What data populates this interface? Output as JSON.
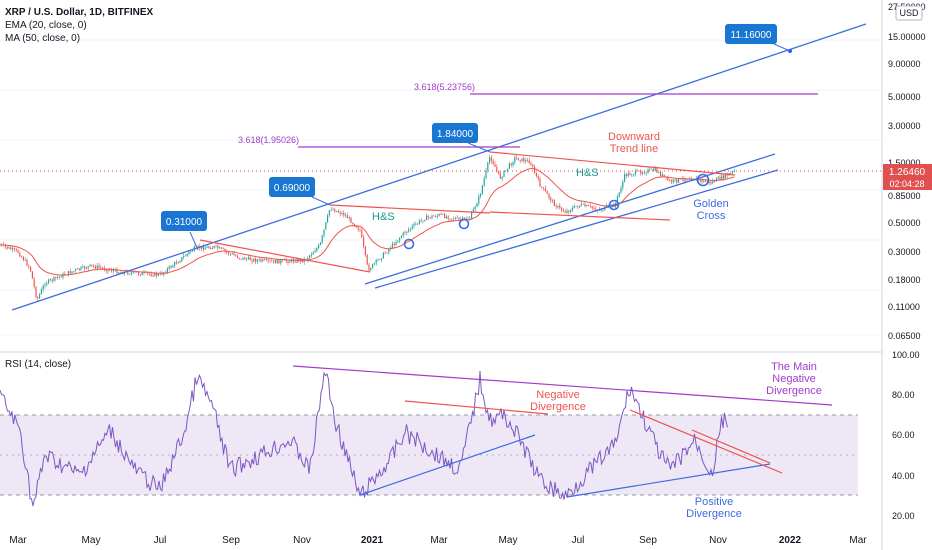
{
  "header": {
    "title": "XRP / U.S. Dollar, 1D, BITFINEX",
    "ema": "EMA (20, close, 0)",
    "ma": "MA (50, close, 0)",
    "currency": "USD",
    "rsi_title": "RSI (14, close)"
  },
  "colors": {
    "channel": "#3b6de0",
    "trend": "#f0544f",
    "fib": "#a23bcd",
    "ema": "#f0544f",
    "rsi": "#7e57c2",
    "rsi_band": "#ede7f6",
    "label_bg": "#1976d2",
    "price_tag": "#e05050",
    "golden": "#3b6de0",
    "hns": "#1e9a8c"
  },
  "chart_data": [
    {
      "type": "line",
      "title": "XRP / U.S. Dollar, 1D, BITFINEX",
      "scale": "log",
      "y_ticks": [
        "27.50000",
        "15.00000",
        "9.00000",
        "5.00000",
        "3.00000",
        "1.50000",
        "0.85000",
        "0.50000",
        "0.30000",
        "0.18000",
        "0.11000",
        "0.06500"
      ],
      "x_ticks": [
        "Mar",
        "May",
        "Jul",
        "Sep",
        "Nov",
        "2021",
        "Mar",
        "May",
        "Jul",
        "Sep",
        "Nov",
        "2022",
        "Mar"
      ],
      "last_price": "1.26460",
      "countdown": "02:04:28",
      "callouts": [
        "0.31000",
        "0.69000",
        "1.84000",
        "11.16000"
      ],
      "fib_levels": [
        {
          "label": "3.618(1.95026)",
          "value": 1.95026
        },
        {
          "label": "3.618(5.23756)",
          "value": 5.23756
        }
      ],
      "annotations": [
        "H&S",
        "H&S",
        "Downward\nTrend line",
        "Golden\nCross"
      ]
    },
    {
      "type": "line",
      "title": "RSI (14, close)",
      "y_ticks": [
        "100.00",
        "80.00",
        "60.00",
        "40.00",
        "20.00"
      ],
      "bands": [
        30,
        50,
        70
      ],
      "annotations": [
        "Negative\nDivergence",
        "The Main\nNegative\nDivergence",
        "Positive\nDivergence"
      ]
    }
  ]
}
